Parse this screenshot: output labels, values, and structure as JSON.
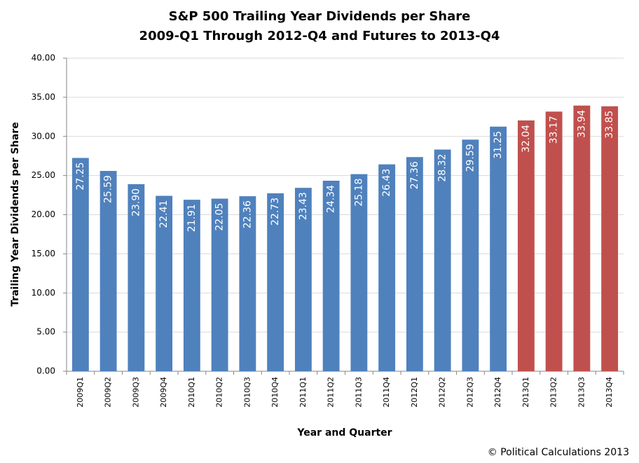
{
  "chart_data": {
    "type": "bar",
    "title": [
      "S&P 500 Trailing Year Dividends per Share",
      "2009-Q1 Through 2012-Q4 and Futures to 2013-Q4"
    ],
    "x_label": "Year and Quarter",
    "y_label": "Trailing Year Dividends per Share",
    "credit": "© Political Calculations 2013",
    "categories": [
      "2009Q1",
      "2009Q2",
      "2009Q3",
      "2009Q4",
      "2010Q1",
      "2010Q2",
      "2010Q3",
      "2010Q4",
      "2011Q1",
      "2011Q2",
      "2011Q3",
      "2011Q4",
      "2012Q1",
      "2012Q2",
      "2012Q3",
      "2012Q4",
      "2013Q1",
      "2013Q2",
      "2013Q3",
      "2013Q4"
    ],
    "values": [
      27.25,
      25.59,
      23.9,
      22.41,
      21.91,
      22.05,
      22.36,
      22.73,
      23.43,
      24.34,
      25.18,
      26.43,
      27.36,
      28.32,
      29.59,
      31.25,
      32.04,
      33.17,
      33.94,
      33.85
    ],
    "value_labels": [
      "27.25",
      "25.59",
      "23.90",
      "22.41",
      "21.91",
      "22.05",
      "22.36",
      "22.73",
      "23.43",
      "24.34",
      "25.18",
      "26.43",
      "27.36",
      "28.32",
      "29.59",
      "31.25",
      "32.04",
      "33.17",
      "33.94",
      "33.85"
    ],
    "colors": [
      "#4f81bd",
      "#4f81bd",
      "#4f81bd",
      "#4f81bd",
      "#4f81bd",
      "#4f81bd",
      "#4f81bd",
      "#4f81bd",
      "#4f81bd",
      "#4f81bd",
      "#4f81bd",
      "#4f81bd",
      "#4f81bd",
      "#4f81bd",
      "#4f81bd",
      "#4f81bd",
      "#c0504d",
      "#c0504d",
      "#c0504d",
      "#c0504d"
    ],
    "ylim": [
      0,
      40
    ],
    "yticks": [
      {
        "value": 0,
        "label": "0.00"
      },
      {
        "value": 5,
        "label": "5.00"
      },
      {
        "value": 10,
        "label": "10.00"
      },
      {
        "value": 15,
        "label": "15.00"
      },
      {
        "value": 20,
        "label": "20.00"
      },
      {
        "value": 25,
        "label": "25.00"
      },
      {
        "value": 30,
        "label": "30.00"
      },
      {
        "value": 35,
        "label": "35.00"
      },
      {
        "value": 40,
        "label": "40.00"
      }
    ],
    "grid": true
  }
}
